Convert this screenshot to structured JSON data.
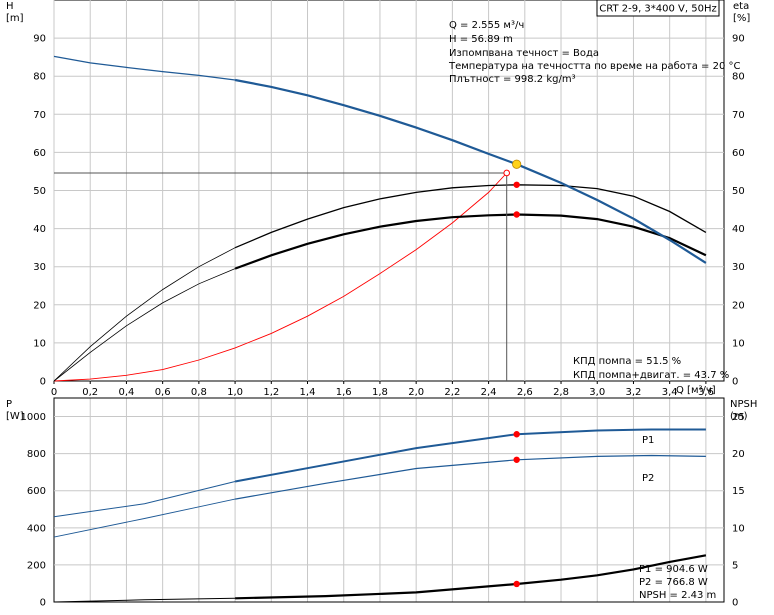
{
  "header": {
    "pump_model": "CRT 2-9, 3*400 V, 50Hz"
  },
  "colors": {
    "head_curve": "#1f5a96",
    "power_curve": "#1f5a96",
    "efficiency_curve": "#000000",
    "system_curve": "#ff0000",
    "duty_point": "#ff0000",
    "intersection_point": "#ffd21a",
    "grid": "#c8c8c8"
  },
  "chart_data": [
    {
      "type": "line",
      "title": "",
      "x_axis": {
        "label": "Q [м³/ч]",
        "range": [
          0,
          3.7
        ],
        "ticks": [
          "0",
          "0,2",
          "0,4",
          "0,6",
          "0,8",
          "1,0",
          "1,2",
          "1,4",
          "1,6",
          "1,8",
          "2,0",
          "2,2",
          "2,4",
          "2,6",
          "2,8",
          "3,0",
          "3,2",
          "3,4",
          "3,6"
        ]
      },
      "y_left": {
        "label": "H",
        "unit": "[m]",
        "range": [
          0,
          100
        ],
        "ticks": [
          "0",
          "10",
          "20",
          "30",
          "40",
          "50",
          "60",
          "70",
          "80",
          "90"
        ]
      },
      "y_right": {
        "label": "eta",
        "unit": "[%]",
        "range": [
          0,
          100
        ],
        "ticks": [
          "0",
          "10",
          "20",
          "30",
          "40",
          "50",
          "60",
          "70",
          "80",
          "90"
        ]
      },
      "grid": true,
      "info_lines": [
        "Q = 2.555 м³/ч",
        "H = 56.89 m",
        "Изпомпвана течност = Вода",
        "Температура на течността по време на работа = 20 °C",
        "Плътност = 998.2 kg/m³"
      ],
      "efficiency_labels": [
        "КПД помпа = 51.5 %",
        "КПД помпа+двигат. = 43.7 %"
      ],
      "series": [
        {
          "key": "head",
          "axis": "left",
          "points": [
            [
              0,
              85.2
            ],
            [
              0.2,
              83.5
            ],
            [
              0.4,
              82.3
            ],
            [
              0.6,
              81.2
            ],
            [
              0.8,
              80.2
            ],
            [
              1.0,
              79.0
            ],
            [
              1.2,
              77.2
            ],
            [
              1.4,
              75.0
            ],
            [
              1.6,
              72.4
            ],
            [
              1.8,
              69.6
            ],
            [
              2.0,
              66.5
            ],
            [
              2.2,
              63.2
            ],
            [
              2.4,
              59.6
            ],
            [
              2.555,
              56.89
            ],
            [
              2.8,
              52.0
            ],
            [
              3.0,
              47.5
            ],
            [
              3.2,
              42.6
            ],
            [
              3.4,
              37.0
            ],
            [
              3.6,
              31.0
            ]
          ]
        },
        {
          "key": "pump_efficiency",
          "axis": "right",
          "points": [
            [
              0,
              0
            ],
            [
              0.2,
              9.0
            ],
            [
              0.4,
              17.0
            ],
            [
              0.6,
              24.0
            ],
            [
              0.8,
              30.0
            ],
            [
              1.0,
              35.0
            ],
            [
              1.2,
              39.0
            ],
            [
              1.4,
              42.5
            ],
            [
              1.6,
              45.5
            ],
            [
              1.8,
              47.8
            ],
            [
              2.0,
              49.5
            ],
            [
              2.2,
              50.7
            ],
            [
              2.4,
              51.3
            ],
            [
              2.555,
              51.5
            ],
            [
              2.8,
              51.3
            ],
            [
              3.0,
              50.5
            ],
            [
              3.2,
              48.5
            ],
            [
              3.4,
              44.5
            ],
            [
              3.6,
              39.0
            ]
          ]
        },
        {
          "key": "total_efficiency",
          "axis": "right",
          "points": [
            [
              0,
              0
            ],
            [
              0.2,
              7.5
            ],
            [
              0.4,
              14.5
            ],
            [
              0.6,
              20.5
            ],
            [
              0.8,
              25.5
            ],
            [
              1.0,
              29.5
            ],
            [
              1.2,
              33.0
            ],
            [
              1.4,
              36.0
            ],
            [
              1.6,
              38.5
            ],
            [
              1.8,
              40.5
            ],
            [
              2.0,
              42.0
            ],
            [
              2.2,
              43.0
            ],
            [
              2.4,
              43.5
            ],
            [
              2.555,
              43.7
            ],
            [
              2.8,
              43.4
            ],
            [
              3.0,
              42.5
            ],
            [
              3.2,
              40.5
            ],
            [
              3.4,
              37.5
            ],
            [
              3.6,
              33.0
            ]
          ]
        },
        {
          "key": "system_curve",
          "axis": "left",
          "points": [
            [
              0,
              0
            ],
            [
              0.2,
              0.5
            ],
            [
              0.4,
              1.5
            ],
            [
              0.6,
              3.0
            ],
            [
              0.8,
              5.5
            ],
            [
              1.0,
              8.7
            ],
            [
              1.2,
              12.5
            ],
            [
              1.4,
              17.0
            ],
            [
              1.6,
              22.2
            ],
            [
              1.8,
              28.2
            ],
            [
              2.0,
              34.5
            ],
            [
              2.2,
              41.5
            ],
            [
              2.4,
              49.5
            ],
            [
              2.5,
              54.6
            ]
          ]
        }
      ],
      "duty_point": {
        "q": 2.555,
        "h": 56.89,
        "eta_pump": 51.5,
        "eta_total": 43.7
      },
      "crosshair": {
        "q": 2.5,
        "h": 54.6
      }
    },
    {
      "type": "line",
      "title": "",
      "x_axis": {
        "range": [
          0,
          3.7
        ]
      },
      "y_left": {
        "label": "P",
        "unit": "[W]",
        "range": [
          0,
          1100
        ],
        "ticks": [
          "0",
          "200",
          "400",
          "600",
          "800",
          "1000"
        ]
      },
      "y_right": {
        "label": "NPSH",
        "unit": "(m)",
        "range": [
          0,
          27.5
        ],
        "ticks": [
          "0",
          "5",
          "10",
          "15",
          "20",
          "25"
        ]
      },
      "grid": true,
      "series": [
        {
          "key": "P1",
          "name": "P1",
          "axis": "left",
          "points": [
            [
              0,
              460
            ],
            [
              0.5,
              530
            ],
            [
              1.0,
              650
            ],
            [
              1.5,
              740
            ],
            [
              2.0,
              830
            ],
            [
              2.555,
              904.6
            ],
            [
              3.0,
              925
            ],
            [
              3.3,
              930
            ],
            [
              3.6,
              930
            ]
          ]
        },
        {
          "key": "P2",
          "name": "P2",
          "axis": "left",
          "points": [
            [
              0,
              350
            ],
            [
              0.5,
              450
            ],
            [
              1.0,
              555
            ],
            [
              1.5,
              640
            ],
            [
              2.0,
              720
            ],
            [
              2.555,
              766.8
            ],
            [
              3.0,
              785
            ],
            [
              3.3,
              790
            ],
            [
              3.6,
              785
            ]
          ]
        },
        {
          "key": "NPSH",
          "axis": "right",
          "points": [
            [
              0,
              0
            ],
            [
              0.5,
              0.3
            ],
            [
              1.0,
              0.5
            ],
            [
              1.5,
              0.8
            ],
            [
              2.0,
              1.3
            ],
            [
              2.555,
              2.43
            ],
            [
              2.8,
              3.0
            ],
            [
              3.0,
              3.6
            ],
            [
              3.2,
              4.4
            ],
            [
              3.4,
              5.4
            ],
            [
              3.6,
              6.3
            ]
          ]
        }
      ],
      "duty_point": {
        "q": 2.555,
        "p1": 904.6,
        "p2": 766.8,
        "npsh": 2.43
      },
      "result_lines": [
        "P1 = 904.6 W",
        "P2 = 766.8 W",
        "NPSH = 2.43 m"
      ]
    }
  ]
}
